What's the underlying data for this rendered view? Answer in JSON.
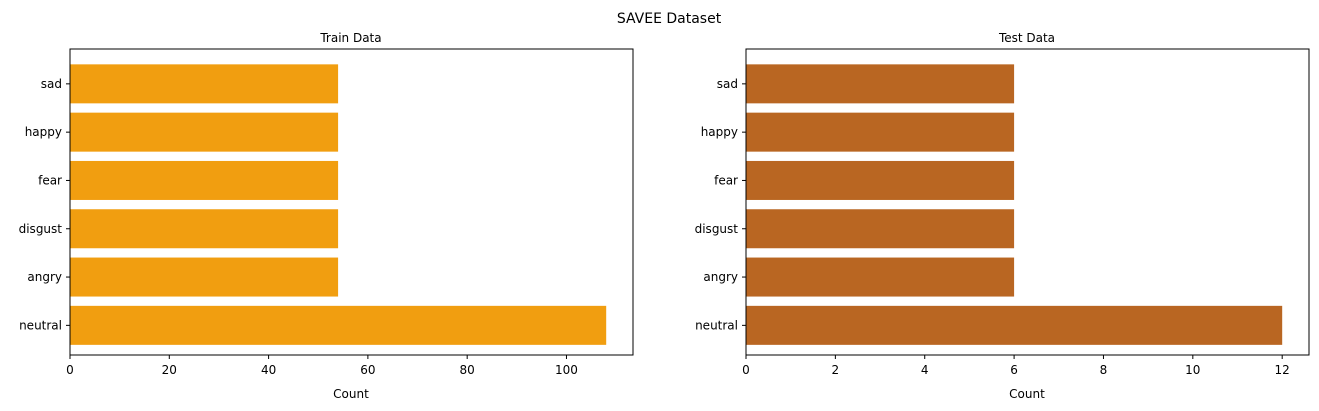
{
  "figure": {
    "title": "SAVEE Dataset"
  },
  "chart_data": [
    {
      "type": "bar",
      "orientation": "horizontal",
      "title": "Train Data",
      "xlabel": "Count",
      "ylabel": "",
      "categories": [
        "neutral",
        "angry",
        "disgust",
        "fear",
        "happy",
        "sad"
      ],
      "values": [
        108,
        54,
        54,
        54,
        54,
        54
      ],
      "xlim": [
        0,
        113.4
      ],
      "xticks": [
        0,
        20,
        40,
        60,
        80,
        100
      ],
      "color": "#f19e10",
      "grid": false,
      "legend": "none"
    },
    {
      "type": "bar",
      "orientation": "horizontal",
      "title": "Test Data",
      "xlabel": "Count",
      "ylabel": "",
      "categories": [
        "neutral",
        "angry",
        "disgust",
        "fear",
        "happy",
        "sad"
      ],
      "values": [
        12,
        6,
        6,
        6,
        6,
        6
      ],
      "xlim": [
        0,
        12.6
      ],
      "xticks": [
        0,
        2,
        4,
        6,
        8,
        10,
        12
      ],
      "color": "#b96622",
      "grid": false,
      "legend": "none"
    }
  ]
}
